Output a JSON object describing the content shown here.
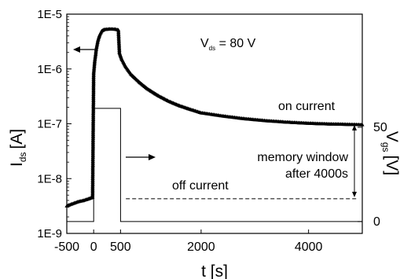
{
  "chart_data": {
    "type": "line",
    "xlabel": "t [s]",
    "ylabel_left": {
      "main": "I",
      "sub": "ds",
      "unit": "[A]"
    },
    "ylabel_right": {
      "main": "V",
      "sub": "gs",
      "unit": "[V]"
    },
    "xlim": [
      -500,
      5000
    ],
    "x_ticks": [
      -500,
      0,
      500,
      2000,
      4000
    ],
    "ylim_left": [
      1e-09,
      1e-05
    ],
    "y_scale_left": "log",
    "y_ticks_left": [
      {
        "value": 1e-05,
        "label": "1E-5"
      },
      {
        "value": 1e-06,
        "label": "1E-6"
      },
      {
        "value": 1e-07,
        "label": "1E-7"
      },
      {
        "value": 1e-08,
        "label": "1E-8"
      },
      {
        "value": 1e-09,
        "label": "1E-9"
      }
    ],
    "ylim_right": [
      -6.3,
      110
    ],
    "y_ticks_right": [
      0,
      50
    ],
    "series": [
      {
        "name": "",
        "axis": "left",
        "style": "markers",
        "points": [
          [
            -500,
            3.2e-09
          ],
          [
            -400,
            3.5e-09
          ],
          [
            -300,
            3.8e-09
          ],
          [
            -200,
            4e-09
          ],
          [
            -100,
            4.3e-09
          ],
          [
            -20,
            4.6e-09
          ],
          [
            0,
            8.5e-07
          ],
          [
            20,
            1.4e-06
          ],
          [
            50,
            2.4e-06
          ],
          [
            80,
            3.4e-06
          ],
          [
            110,
            4.2e-06
          ],
          [
            150,
            5e-06
          ],
          [
            200,
            5.3e-06
          ],
          [
            300,
            5.4e-06
          ],
          [
            400,
            5.35e-06
          ],
          [
            460,
            5.2e-06
          ],
          [
            480,
            2e-06
          ],
          [
            520,
            1.55e-06
          ],
          [
            600,
            1.1e-06
          ],
          [
            700,
            8e-07
          ],
          [
            850,
            5.8e-07
          ],
          [
            1000,
            4.4e-07
          ],
          [
            1200,
            3.3e-07
          ],
          [
            1400,
            2.6e-07
          ],
          [
            1600,
            2.15e-07
          ],
          [
            1800,
            1.85e-07
          ],
          [
            2000,
            1.6e-07
          ],
          [
            2400,
            1.4e-07
          ],
          [
            2800,
            1.25e-07
          ],
          [
            3200,
            1.15e-07
          ],
          [
            3600,
            1.08e-07
          ],
          [
            4000,
            1.03e-07
          ],
          [
            4400,
            1e-07
          ],
          [
            4800,
            9.8e-08
          ],
          [
            5000,
            9.7e-08
          ]
        ]
      },
      {
        "name": "",
        "axis": "right",
        "style": "step",
        "points": [
          [
            -500,
            0
          ],
          [
            0,
            0
          ],
          [
            0,
            60
          ],
          [
            500,
            60
          ],
          [
            500,
            0
          ],
          [
            5000,
            0
          ]
        ]
      }
    ],
    "reference_line": {
      "axis": "left",
      "value": 4.3e-09,
      "style": "dashed"
    },
    "annotations": {
      "vds": {
        "main": "V",
        "sub": "ds",
        "rest": " = 80 V"
      },
      "on_current": "on current",
      "off_current": "off current",
      "memory_window_line1": "memory window",
      "memory_window_line2": "after 4000s"
    },
    "grid": false
  }
}
